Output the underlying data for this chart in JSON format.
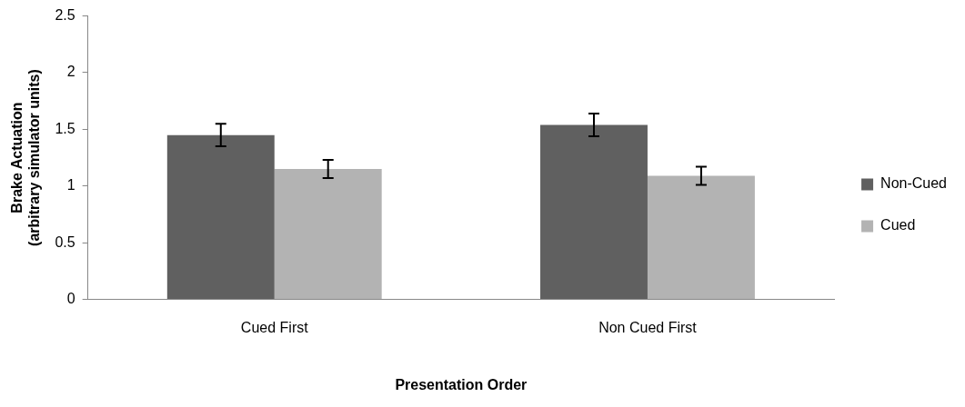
{
  "chart_data": {
    "type": "bar",
    "xlabel": "Presentation Order",
    "ylabel": "Brake Actuation\n(arbitrary simulator units)",
    "categories": [
      "Cued First",
      "Non Cued First"
    ],
    "series": [
      {
        "name": "Non-Cued",
        "color": "#606060",
        "values": [
          1.45,
          1.54
        ],
        "errors": [
          0.1,
          0.1
        ]
      },
      {
        "name": "Cued",
        "color": "#b3b3b3",
        "values": [
          1.15,
          1.09
        ],
        "errors": [
          0.08,
          0.08
        ]
      }
    ],
    "ylim": [
      0,
      2.5
    ],
    "yticks": [
      0,
      0.5,
      1,
      1.5,
      2,
      2.5
    ],
    "grid": false,
    "legend": "right"
  }
}
